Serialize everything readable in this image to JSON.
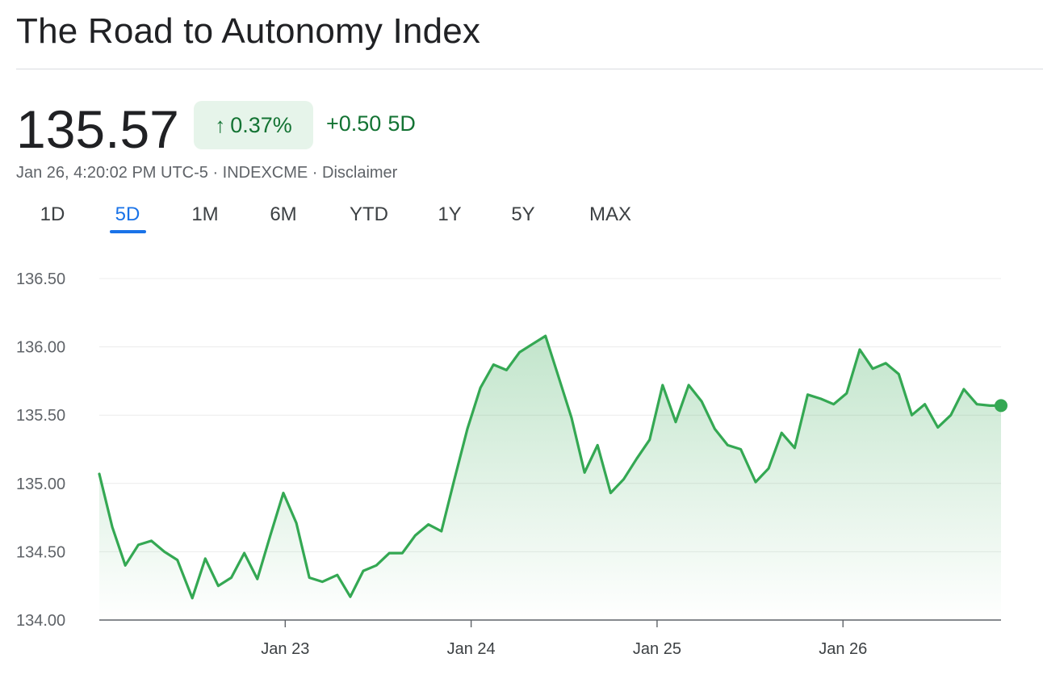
{
  "header": {
    "title": "The Road to Autonomy Index"
  },
  "quote": {
    "price": "135.57",
    "change_arrow": "↑",
    "change_pct": "0.37%",
    "change_abs": "+0.50",
    "change_period": "5D",
    "meta": "Jan 26, 4:20:02 PM UTC-5 · INDEXCME · Disclaimer"
  },
  "tabs": [
    {
      "label": "1D",
      "active": false
    },
    {
      "label": "5D",
      "active": true
    },
    {
      "label": "1M",
      "active": false
    },
    {
      "label": "6M",
      "active": false
    },
    {
      "label": "YTD",
      "active": false
    },
    {
      "label": "1Y",
      "active": false
    },
    {
      "label": "5Y",
      "active": false
    },
    {
      "label": "MAX",
      "active": false
    }
  ],
  "colors": {
    "up": "#34a853",
    "up_text": "#137333",
    "badge_bg": "#e6f4ea",
    "active_tab": "#1a73e8"
  },
  "chart_data": {
    "type": "area",
    "ylim": [
      134.0,
      136.5
    ],
    "y_ticks": [
      "136.50",
      "136.00",
      "135.50",
      "135.00",
      "134.50",
      "134.00"
    ],
    "x_ticks": [
      {
        "label": "Jan 23",
        "x": 1.0
      },
      {
        "label": "Jan 24",
        "x": 2.0
      },
      {
        "label": "Jan 25",
        "x": 3.0
      },
      {
        "label": "Jan 26",
        "x": 4.0
      }
    ],
    "xlim": [
      0.0,
      4.85
    ],
    "grid": true,
    "series": [
      {
        "x": [
          0.0,
          0.07,
          0.14,
          0.21,
          0.28,
          0.35,
          0.42,
          0.5,
          0.57,
          0.64,
          0.71,
          0.78,
          0.85,
          0.92,
          0.99,
          1.06,
          1.13,
          1.2,
          1.28,
          1.35,
          1.42,
          1.49,
          1.56,
          1.63,
          1.7,
          1.77,
          1.84,
          1.91,
          1.98,
          2.05,
          2.12,
          2.19,
          2.26,
          2.33,
          2.4,
          2.47,
          2.54,
          2.61,
          2.68,
          2.75,
          2.82,
          2.89,
          2.96,
          3.03,
          3.1,
          3.17,
          3.24,
          3.31,
          3.38,
          3.45,
          3.53,
          3.6,
          3.67,
          3.74,
          3.81,
          3.88,
          3.95,
          4.02,
          4.09,
          4.16,
          4.23,
          4.3,
          4.37,
          4.44,
          4.51,
          4.58,
          4.65,
          4.72,
          4.79,
          4.85
        ],
        "y": [
          135.07,
          134.68,
          134.4,
          134.55,
          134.58,
          134.5,
          134.44,
          134.16,
          134.45,
          134.25,
          134.31,
          134.49,
          134.3,
          134.62,
          134.93,
          134.71,
          134.31,
          134.28,
          134.33,
          134.17,
          134.36,
          134.4,
          134.49,
          134.49,
          134.62,
          134.7,
          134.65,
          135.03,
          135.4,
          135.7,
          135.87,
          135.83,
          135.96,
          136.02,
          136.08,
          135.78,
          135.48,
          135.08,
          135.28,
          134.93,
          135.03,
          135.18,
          135.32,
          135.72,
          135.45,
          135.72,
          135.6,
          135.4,
          135.28,
          135.25,
          135.01,
          135.11,
          135.37,
          135.26,
          135.65,
          135.62,
          135.58,
          135.66,
          135.98,
          135.84,
          135.88,
          135.8,
          135.5,
          135.58,
          135.41,
          135.5,
          135.69,
          135.58,
          135.57,
          135.57
        ]
      }
    ]
  }
}
